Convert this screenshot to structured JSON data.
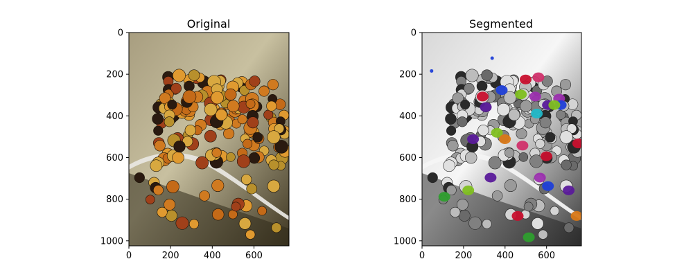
{
  "figure": {
    "panels": [
      {
        "id": "original",
        "title": "Original",
        "x_ticks": [
          "0",
          "200",
          "400",
          "600"
        ],
        "y_ticks": [
          "0",
          "200",
          "400",
          "600",
          "800",
          "1000"
        ],
        "image_content": "photo-ladybugs-cluster"
      },
      {
        "id": "segmented",
        "title": "Segmented",
        "x_ticks": [
          "0",
          "200",
          "400",
          "600"
        ],
        "y_ticks": [
          "0",
          "200",
          "400",
          "600",
          "800",
          "1000"
        ],
        "image_content": "grayscale-ladybugs-with-colored-segment-masks"
      }
    ],
    "colors": {
      "original_bg_light": "#c8c0a0",
      "original_bg_dark": "#4a4028",
      "ladybug_orange": "#d07a20",
      "ladybug_dark": "#2a1a10",
      "seg_bg_light": "#f2f2f2",
      "seg_bg_dark": "#505050",
      "mask_red": "#c8102e",
      "mask_magenta": "#9b2fae",
      "mask_blue": "#1f3fd8",
      "mask_green": "#2e9e2e",
      "mask_cyan": "#20b8c8",
      "mask_lime": "#7fbf20",
      "mask_orange": "#d87818",
      "mask_purple": "#5a1a9a",
      "mask_pink": "#d0306a"
    }
  }
}
